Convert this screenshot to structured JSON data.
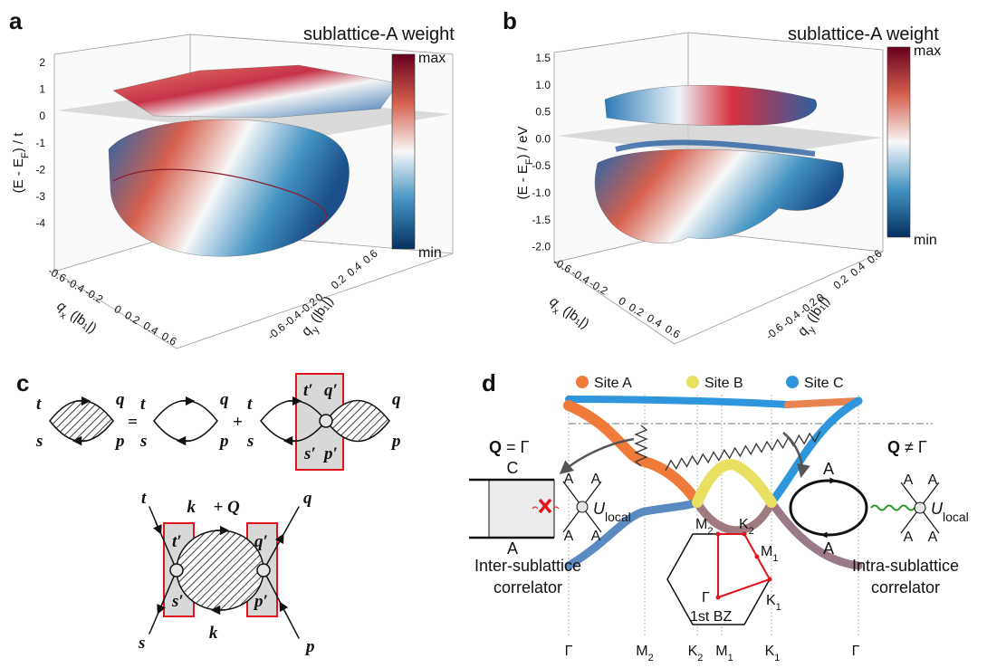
{
  "panel_a": {
    "label": "a",
    "title": "sublattice-A weight",
    "colorbar_max": "max",
    "colorbar_min": "min",
    "z_label": {
      "main": "(E - E",
      "sub": "F",
      "rest": ") / t"
    },
    "z_ticks": [
      "2",
      "1",
      "0",
      "-1",
      "-2",
      "-3",
      "-4"
    ],
    "x_ticks": [
      "-0.6",
      "-0.4",
      "-0.2",
      "0",
      "0.2",
      "0.4",
      "0.6"
    ],
    "y_ticks": [
      "0.6",
      "0.4",
      "0.2",
      "0",
      "-0.2",
      "-0.4",
      "-0.6"
    ],
    "x_label": {
      "main": "q",
      "sub": "x",
      "rest": " (|b₁|)"
    },
    "y_label": {
      "main": "q",
      "sub": "y",
      "rest": " (|b₁|)"
    }
  },
  "panel_b": {
    "label": "b",
    "title": "sublattice-A weight",
    "colorbar_max": "max",
    "colorbar_min": "min",
    "z_label": {
      "main": "(E - E",
      "sub": "F",
      "rest": ") / eV"
    },
    "z_ticks": [
      "1.5",
      "1.0",
      "0.5",
      "0.0",
      "-0.5",
      "-1.0",
      "-1.5",
      "-2.0"
    ],
    "x_ticks": [
      "-0.6",
      "-0.4",
      "-0.2",
      "0",
      "0.2",
      "0.4",
      "0.6"
    ],
    "y_ticks": [
      "0.6",
      "0.4",
      "0.2",
      "0",
      "-0.2",
      "-0.4",
      "-0.6"
    ],
    "x_label": {
      "main": "q",
      "sub": "x",
      "rest": " (|b₁|)"
    },
    "y_label": {
      "main": "q",
      "sub": "y",
      "rest": " (|b₁|)"
    }
  },
  "panel_c": {
    "label": "c",
    "equation": {
      "t": "t",
      "s": "s",
      "q": "q",
      "p": "p",
      "equals": "=",
      "plus": "+",
      "t_prime": "t′",
      "q_prime": "q′",
      "s_prime": "s′",
      "p_prime": "p′"
    },
    "vertex": {
      "t": "t",
      "s": "s",
      "q": "q",
      "p": "p",
      "t_prime": "t′",
      "q_prime": "q′",
      "s_prime": "s′",
      "p_prime": "p′",
      "top_momentum": "k⃗ + Q⃗",
      "bottom_momentum": "k⃗"
    }
  },
  "panel_d": {
    "label": "d",
    "legend": [
      "Site A",
      "Site B",
      "Site C"
    ],
    "x_labels": [
      {
        "main": "Γ",
        "sub": ""
      },
      {
        "main": "M",
        "sub": "2"
      },
      {
        "main": "K",
        "sub": "2"
      },
      {
        "main": "M",
        "sub": "1"
      },
      {
        "main": "K",
        "sub": "1"
      },
      {
        "main": "Γ",
        "sub": ""
      }
    ],
    "left": {
      "q": {
        "main": "Q",
        "rest": " = Γ"
      },
      "top_site": "C",
      "bottom_site": "A",
      "vertex_sites": [
        "A",
        "A",
        "A",
        "A"
      ],
      "u": {
        "main": "U",
        "sub": "local"
      },
      "caption": [
        "Inter-sublattice",
        "correlator"
      ]
    },
    "right": {
      "q": {
        "main": "Q",
        "rest": " ≠ Γ"
      },
      "top_site": "A",
      "bottom_site": "A",
      "vertex_sites": [
        "A",
        "A",
        "A",
        "A"
      ],
      "u": {
        "main": "U",
        "sub": "local"
      },
      "caption": [
        "Intra-sublattice",
        "correlator"
      ]
    },
    "bz": {
      "points": [
        {
          "main": "M",
          "sub": "2"
        },
        {
          "main": "K",
          "sub": "2"
        },
        {
          "main": "M",
          "sub": "1"
        },
        {
          "main": "Γ",
          "sub": ""
        },
        {
          "main": "K",
          "sub": "1"
        }
      ],
      "caption": "1st BZ"
    }
  }
}
